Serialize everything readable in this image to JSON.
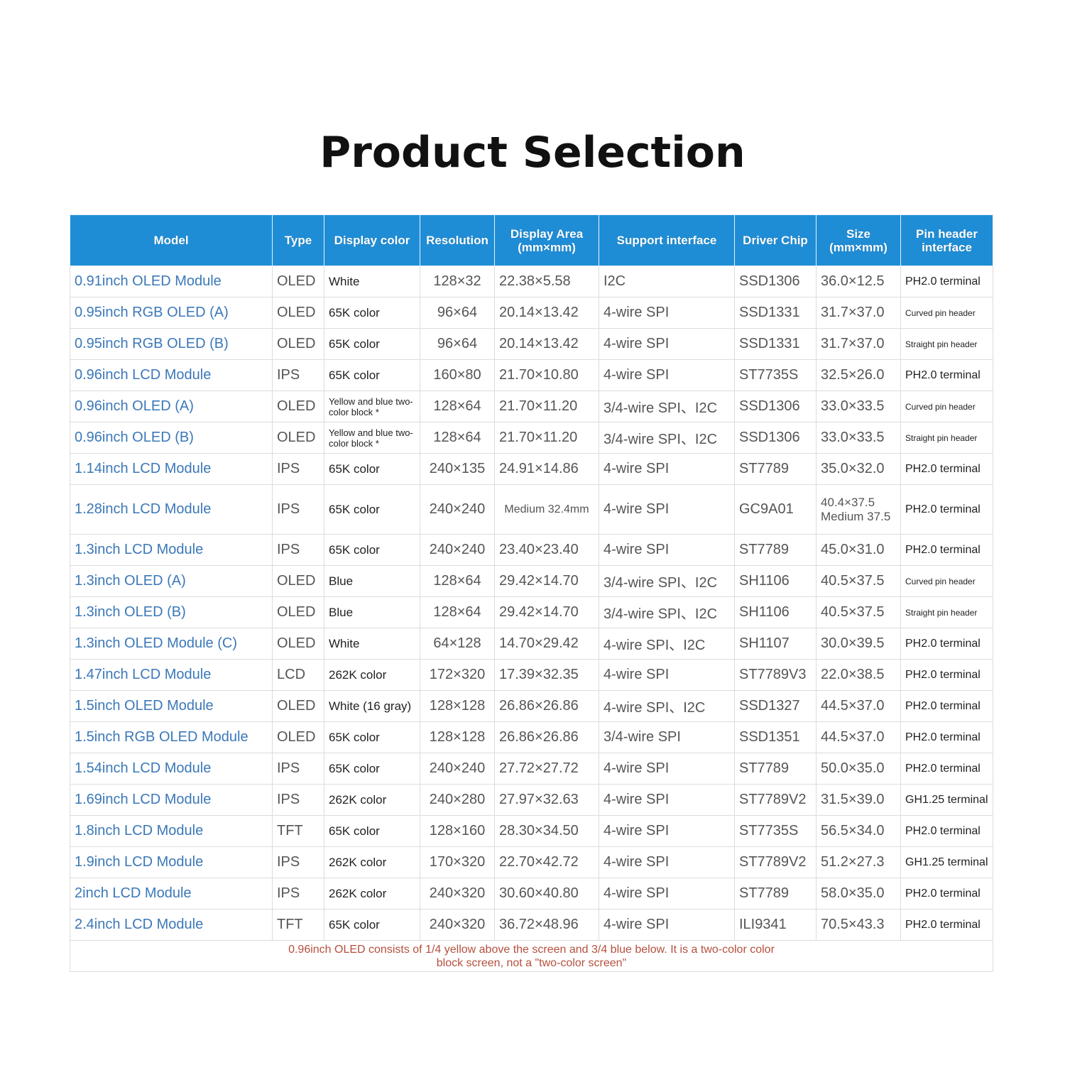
{
  "title": "Product Selection",
  "colors": {
    "header_bg": "#1f8dd6",
    "model_text": "#3b78b8",
    "note_text": "#b5503d"
  },
  "headers": [
    "Model",
    "Type",
    "Display color",
    "Resolution",
    "Display Area (mm×mm)",
    "Support interface",
    "Driver Chip",
    "Size (mm×mm)",
    "Pin header interface"
  ],
  "rows": [
    [
      "0.91inch OLED Module",
      "OLED",
      "White",
      "128×32",
      "22.38×5.58",
      "I2C",
      "SSD1306",
      "36.0×12.5",
      "PH2.0 terminal"
    ],
    [
      "0.95inch RGB OLED (A)",
      "OLED",
      "65K color",
      "96×64",
      "20.14×13.42",
      "4-wire SPI",
      "SSD1331",
      "31.7×37.0",
      "Curved pin header"
    ],
    [
      "0.95inch RGB OLED (B)",
      "OLED",
      "65K color",
      "96×64",
      "20.14×13.42",
      "4-wire SPI",
      "SSD1331",
      "31.7×37.0",
      "Straight pin header"
    ],
    [
      "0.96inch LCD Module",
      "IPS",
      "65K color",
      "160×80",
      "21.70×10.80",
      "4-wire SPI",
      "ST7735S",
      "32.5×26.0",
      "PH2.0 terminal"
    ],
    [
      "0.96inch OLED (A)",
      "OLED",
      "Yellow and blue two-color block *",
      "128×64",
      "21.70×11.20",
      "3/4-wire SPI、I2C",
      "SSD1306",
      "33.0×33.5",
      "Curved pin header"
    ],
    [
      "0.96inch OLED (B)",
      "OLED",
      "Yellow and blue two-color block *",
      "128×64",
      "21.70×11.20",
      "3/4-wire SPI、I2C",
      "SSD1306",
      "33.0×33.5",
      "Straight pin header"
    ],
    [
      "1.14inch LCD Module",
      "IPS",
      "65K color",
      "240×135",
      "24.91×14.86",
      "4-wire SPI",
      "ST7789",
      "35.0×32.0",
      "PH2.0 terminal"
    ],
    [
      "1.28inch LCD Module",
      "IPS",
      "65K color",
      "240×240",
      "Medium 32.4mm",
      "4-wire SPI",
      "GC9A01",
      "40.4×37.5 Medium 37.5",
      "PH2.0 terminal"
    ],
    [
      "1.3inch LCD Module",
      "IPS",
      "65K color",
      "240×240",
      "23.40×23.40",
      "4-wire SPI",
      "ST7789",
      "45.0×31.0",
      "PH2.0 terminal"
    ],
    [
      "1.3inch OLED (A)",
      "OLED",
      "Blue",
      "128×64",
      "29.42×14.70",
      "3/4-wire SPI、I2C",
      "SH1106",
      "40.5×37.5",
      "Curved pin header"
    ],
    [
      "1.3inch OLED (B)",
      "OLED",
      "Blue",
      "128×64",
      "29.42×14.70",
      "3/4-wire SPI、I2C",
      "SH1106",
      "40.5×37.5",
      "Straight pin header"
    ],
    [
      "1.3inch OLED Module (C)",
      "OLED",
      "White",
      "64×128",
      "14.70×29.42",
      "4-wire SPI、I2C",
      "SH1107",
      "30.0×39.5",
      "PH2.0 terminal"
    ],
    [
      "1.47inch LCD Module",
      "LCD",
      "262K color",
      "172×320",
      "17.39×32.35",
      "4-wire SPI",
      "ST7789V3",
      "22.0×38.5",
      "PH2.0 terminal"
    ],
    [
      "1.5inch OLED Module",
      "OLED",
      "White (16 gray)",
      "128×128",
      "26.86×26.86",
      "4-wire SPI、I2C",
      "SSD1327",
      "44.5×37.0",
      "PH2.0 terminal"
    ],
    [
      "1.5inch RGB OLED Module",
      "OLED",
      "65K color",
      "128×128",
      "26.86×26.86",
      "3/4-wire SPI",
      "SSD1351",
      "44.5×37.0",
      "PH2.0 terminal"
    ],
    [
      "1.54inch LCD Module",
      "IPS",
      "65K color",
      "240×240",
      "27.72×27.72",
      "4-wire SPI",
      "ST7789",
      "50.0×35.0",
      "PH2.0 terminal"
    ],
    [
      "1.69inch LCD Module",
      "IPS",
      "262K color",
      "240×280",
      "27.97×32.63",
      "4-wire SPI",
      "ST7789V2",
      "31.5×39.0",
      "GH1.25 terminal"
    ],
    [
      "1.8inch LCD Module",
      "TFT",
      "65K color",
      "128×160",
      "28.30×34.50",
      "4-wire SPI",
      "ST7735S",
      "56.5×34.0",
      "PH2.0 terminal"
    ],
    [
      "1.9inch LCD Module",
      "IPS",
      "262K color",
      "170×320",
      "22.70×42.72",
      "4-wire SPI",
      "ST7789V2",
      "51.2×27.3",
      "GH1.25 terminal"
    ],
    [
      "2inch LCD Module",
      "IPS",
      "262K color",
      "240×320",
      "30.60×40.80",
      "4-wire SPI",
      "ST7789",
      "58.0×35.0",
      "PH2.0 terminal"
    ],
    [
      "2.4inch LCD Module",
      "TFT",
      "65K color",
      "240×320",
      "36.72×48.96",
      "4-wire SPI",
      "ILI9341",
      "70.5×43.3",
      "PH2.0 terminal"
    ]
  ],
  "note": "0.96inch OLED consists of 1/4 yellow above the screen and 3/4 blue below. It is a two-color color block screen, not a \"two-color screen\""
}
